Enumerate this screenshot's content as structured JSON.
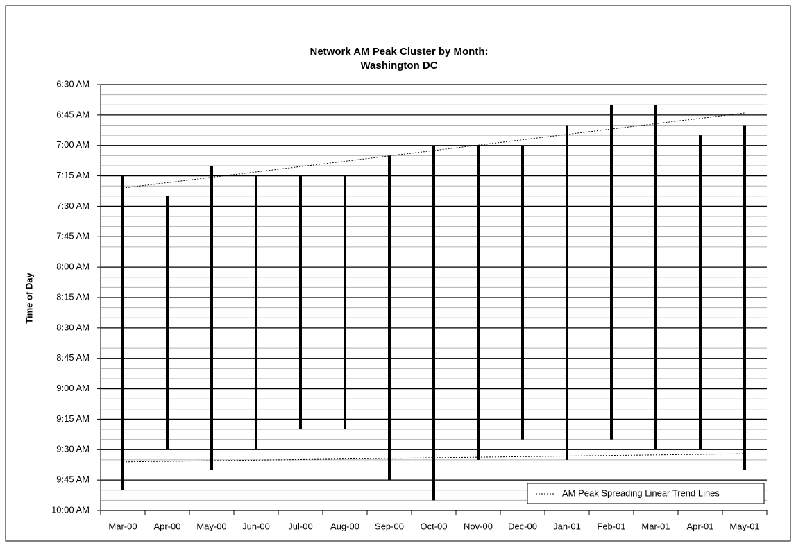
{
  "chart_data": {
    "type": "floating-range",
    "title": [
      "Network AM Peak Cluster by Month:",
      "Washington DC"
    ],
    "y_label": "Time of Day",
    "categories": [
      "Mar-00",
      "Apr-00",
      "May-00",
      "Jun-00",
      "Jul-00",
      "Aug-00",
      "Sep-00",
      "Oct-00",
      "Nov-00",
      "Dec-00",
      "Jan-01",
      "Feb-01",
      "Mar-01",
      "Apr-01",
      "May-01"
    ],
    "start": [
      435,
      445,
      430,
      435,
      435,
      435,
      425,
      420,
      420,
      420,
      410,
      400,
      400,
      415,
      410
    ],
    "end": [
      590,
      570,
      580,
      570,
      560,
      560,
      585,
      595,
      575,
      565,
      575,
      565,
      570,
      570,
      580
    ],
    "color": "#000000",
    "ylim": [
      390,
      600
    ],
    "y_inverted": true,
    "yticks": [
      {
        "value": 390,
        "label": "6:30 AM"
      },
      {
        "value": 405,
        "label": "6:45 AM"
      },
      {
        "value": 420,
        "label": "7:00 AM"
      },
      {
        "value": 435,
        "label": "7:15 AM"
      },
      {
        "value": 450,
        "label": "7:30 AM"
      },
      {
        "value": 465,
        "label": "7:45 AM"
      },
      {
        "value": 480,
        "label": "8:00 AM"
      },
      {
        "value": 495,
        "label": "8:15 AM"
      },
      {
        "value": 510,
        "label": "8:30 AM"
      },
      {
        "value": 525,
        "label": "8:45 AM"
      },
      {
        "value": 540,
        "label": "9:00 AM"
      },
      {
        "value": 555,
        "label": "9:15 AM"
      },
      {
        "value": 570,
        "label": "9:30 AM"
      },
      {
        "value": 585,
        "label": "9:45 AM"
      },
      {
        "value": 600,
        "label": "10:00 AM"
      }
    ],
    "minor_yticks": [
      395,
      400,
      410,
      415,
      425,
      430,
      440,
      445,
      455,
      460,
      470,
      475,
      485,
      490,
      500,
      505,
      515,
      520,
      530,
      535,
      545,
      550,
      560,
      565,
      575,
      580,
      590,
      595
    ],
    "grid": true,
    "trend": {
      "name": "AM Peak Spreading Linear Trend Lines",
      "lines": [
        {
          "values": [
            441,
            404
          ]
        },
        {
          "values": [
            576,
            572
          ]
        }
      ]
    },
    "legend": "bottom-right"
  }
}
